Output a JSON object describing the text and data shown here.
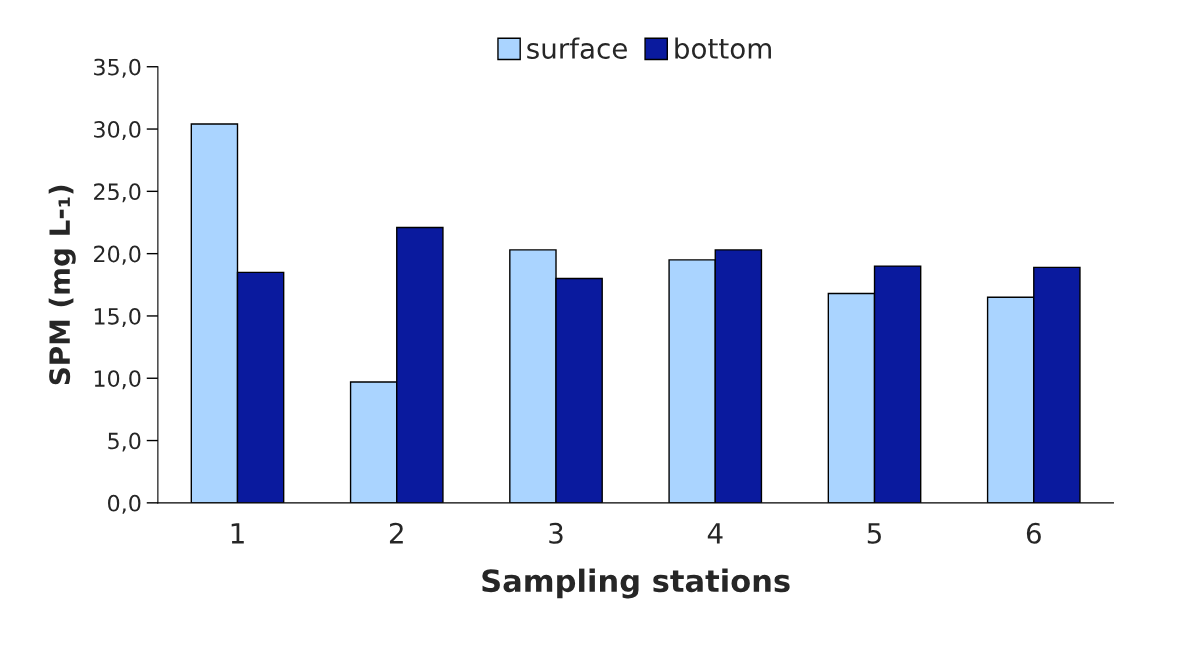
{
  "chart_data": {
    "type": "bar",
    "xlabel": "Sampling stations",
    "ylabel": "SPM (mg L-₁)",
    "categories": [
      "1",
      "2",
      "3",
      "4",
      "5",
      "6"
    ],
    "series": [
      {
        "name": "surface",
        "color": "#aad4ff",
        "values": [
          30.4,
          9.7,
          20.3,
          19.5,
          16.8,
          16.5
        ]
      },
      {
        "name": "bottom",
        "color": "#0a1a9e",
        "values": [
          18.5,
          22.1,
          18.0,
          20.3,
          19.0,
          18.9
        ]
      }
    ],
    "ylim": [
      0,
      35
    ],
    "yticks": [
      {
        "value": 0,
        "label": "0,0"
      },
      {
        "value": 5,
        "label": "5,0"
      },
      {
        "value": 10,
        "label": "10,0"
      },
      {
        "value": 15,
        "label": "15,0"
      },
      {
        "value": 20,
        "label": "20,0"
      },
      {
        "value": 25,
        "label": "25,0"
      },
      {
        "value": 30,
        "label": "30,0"
      },
      {
        "value": 35,
        "label": "35,0"
      }
    ],
    "grid": false,
    "legend": "top"
  }
}
